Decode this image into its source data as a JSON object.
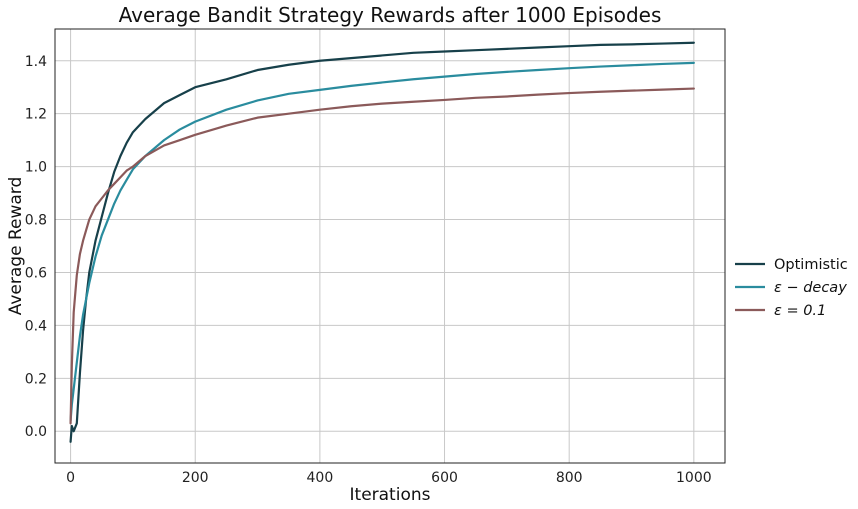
{
  "chart_data": {
    "type": "line",
    "title": "Average Bandit Strategy Rewards after 1000 Episodes",
    "xlabel": "Iterations",
    "ylabel": "Average Reward",
    "xlim": [
      -25,
      1050
    ],
    "ylim": [
      -0.12,
      1.52
    ],
    "xticks": [
      0,
      200,
      400,
      600,
      800,
      1000
    ],
    "yticks": [
      0.0,
      0.2,
      0.4,
      0.6,
      0.8,
      1.0,
      1.2,
      1.4
    ],
    "xtick_labels": [
      "0",
      "200",
      "400",
      "600",
      "800",
      "1000"
    ],
    "ytick_labels": [
      "0.0",
      "0.2",
      "0.4",
      "0.6",
      "0.8",
      "1.0",
      "1.2",
      "1.4"
    ],
    "grid": true,
    "legend_placement": "outside-right",
    "series": [
      {
        "name": "Optimistic",
        "legend_label": "Optimistic",
        "color": "#17404a",
        "x": [
          0,
          2,
          5,
          10,
          15,
          20,
          25,
          30,
          40,
          50,
          60,
          70,
          80,
          90,
          100,
          120,
          150,
          175,
          200,
          250,
          300,
          350,
          400,
          450,
          500,
          550,
          600,
          650,
          700,
          750,
          800,
          850,
          900,
          950,
          1000
        ],
        "y": [
          -0.04,
          0.02,
          0.0,
          0.03,
          0.22,
          0.38,
          0.5,
          0.6,
          0.72,
          0.81,
          0.9,
          0.98,
          1.04,
          1.09,
          1.13,
          1.18,
          1.24,
          1.27,
          1.3,
          1.33,
          1.365,
          1.385,
          1.4,
          1.41,
          1.42,
          1.43,
          1.435,
          1.44,
          1.445,
          1.45,
          1.455,
          1.46,
          1.462,
          1.465,
          1.468
        ]
      },
      {
        "name": "ε-decay",
        "legend_label": "ε − decay",
        "color": "#2a8c9e",
        "x": [
          0,
          2,
          5,
          10,
          15,
          20,
          25,
          30,
          40,
          50,
          60,
          70,
          80,
          90,
          100,
          120,
          150,
          175,
          200,
          250,
          300,
          350,
          400,
          450,
          500,
          550,
          600,
          650,
          700,
          750,
          800,
          850,
          900,
          950,
          1000
        ],
        "y": [
          0.04,
          0.1,
          0.16,
          0.26,
          0.36,
          0.44,
          0.5,
          0.56,
          0.66,
          0.74,
          0.8,
          0.86,
          0.91,
          0.95,
          0.99,
          1.04,
          1.1,
          1.14,
          1.17,
          1.215,
          1.25,
          1.275,
          1.29,
          1.305,
          1.318,
          1.33,
          1.34,
          1.35,
          1.358,
          1.365,
          1.372,
          1.378,
          1.383,
          1.388,
          1.392
        ]
      },
      {
        "name": "ε=0.1",
        "legend_label": "ε = 0.1",
        "color": "#8b5a5a",
        "x": [
          0,
          2,
          5,
          10,
          15,
          20,
          25,
          30,
          40,
          50,
          60,
          70,
          80,
          90,
          100,
          120,
          150,
          175,
          200,
          250,
          300,
          350,
          400,
          450,
          500,
          550,
          600,
          650,
          700,
          750,
          800,
          850,
          900,
          950,
          1000
        ],
        "y": [
          0.03,
          0.25,
          0.45,
          0.59,
          0.67,
          0.72,
          0.76,
          0.8,
          0.85,
          0.88,
          0.91,
          0.935,
          0.96,
          0.985,
          1.0,
          1.04,
          1.08,
          1.1,
          1.12,
          1.155,
          1.185,
          1.2,
          1.215,
          1.228,
          1.238,
          1.245,
          1.252,
          1.26,
          1.265,
          1.272,
          1.278,
          1.283,
          1.287,
          1.291,
          1.295
        ]
      }
    ]
  }
}
